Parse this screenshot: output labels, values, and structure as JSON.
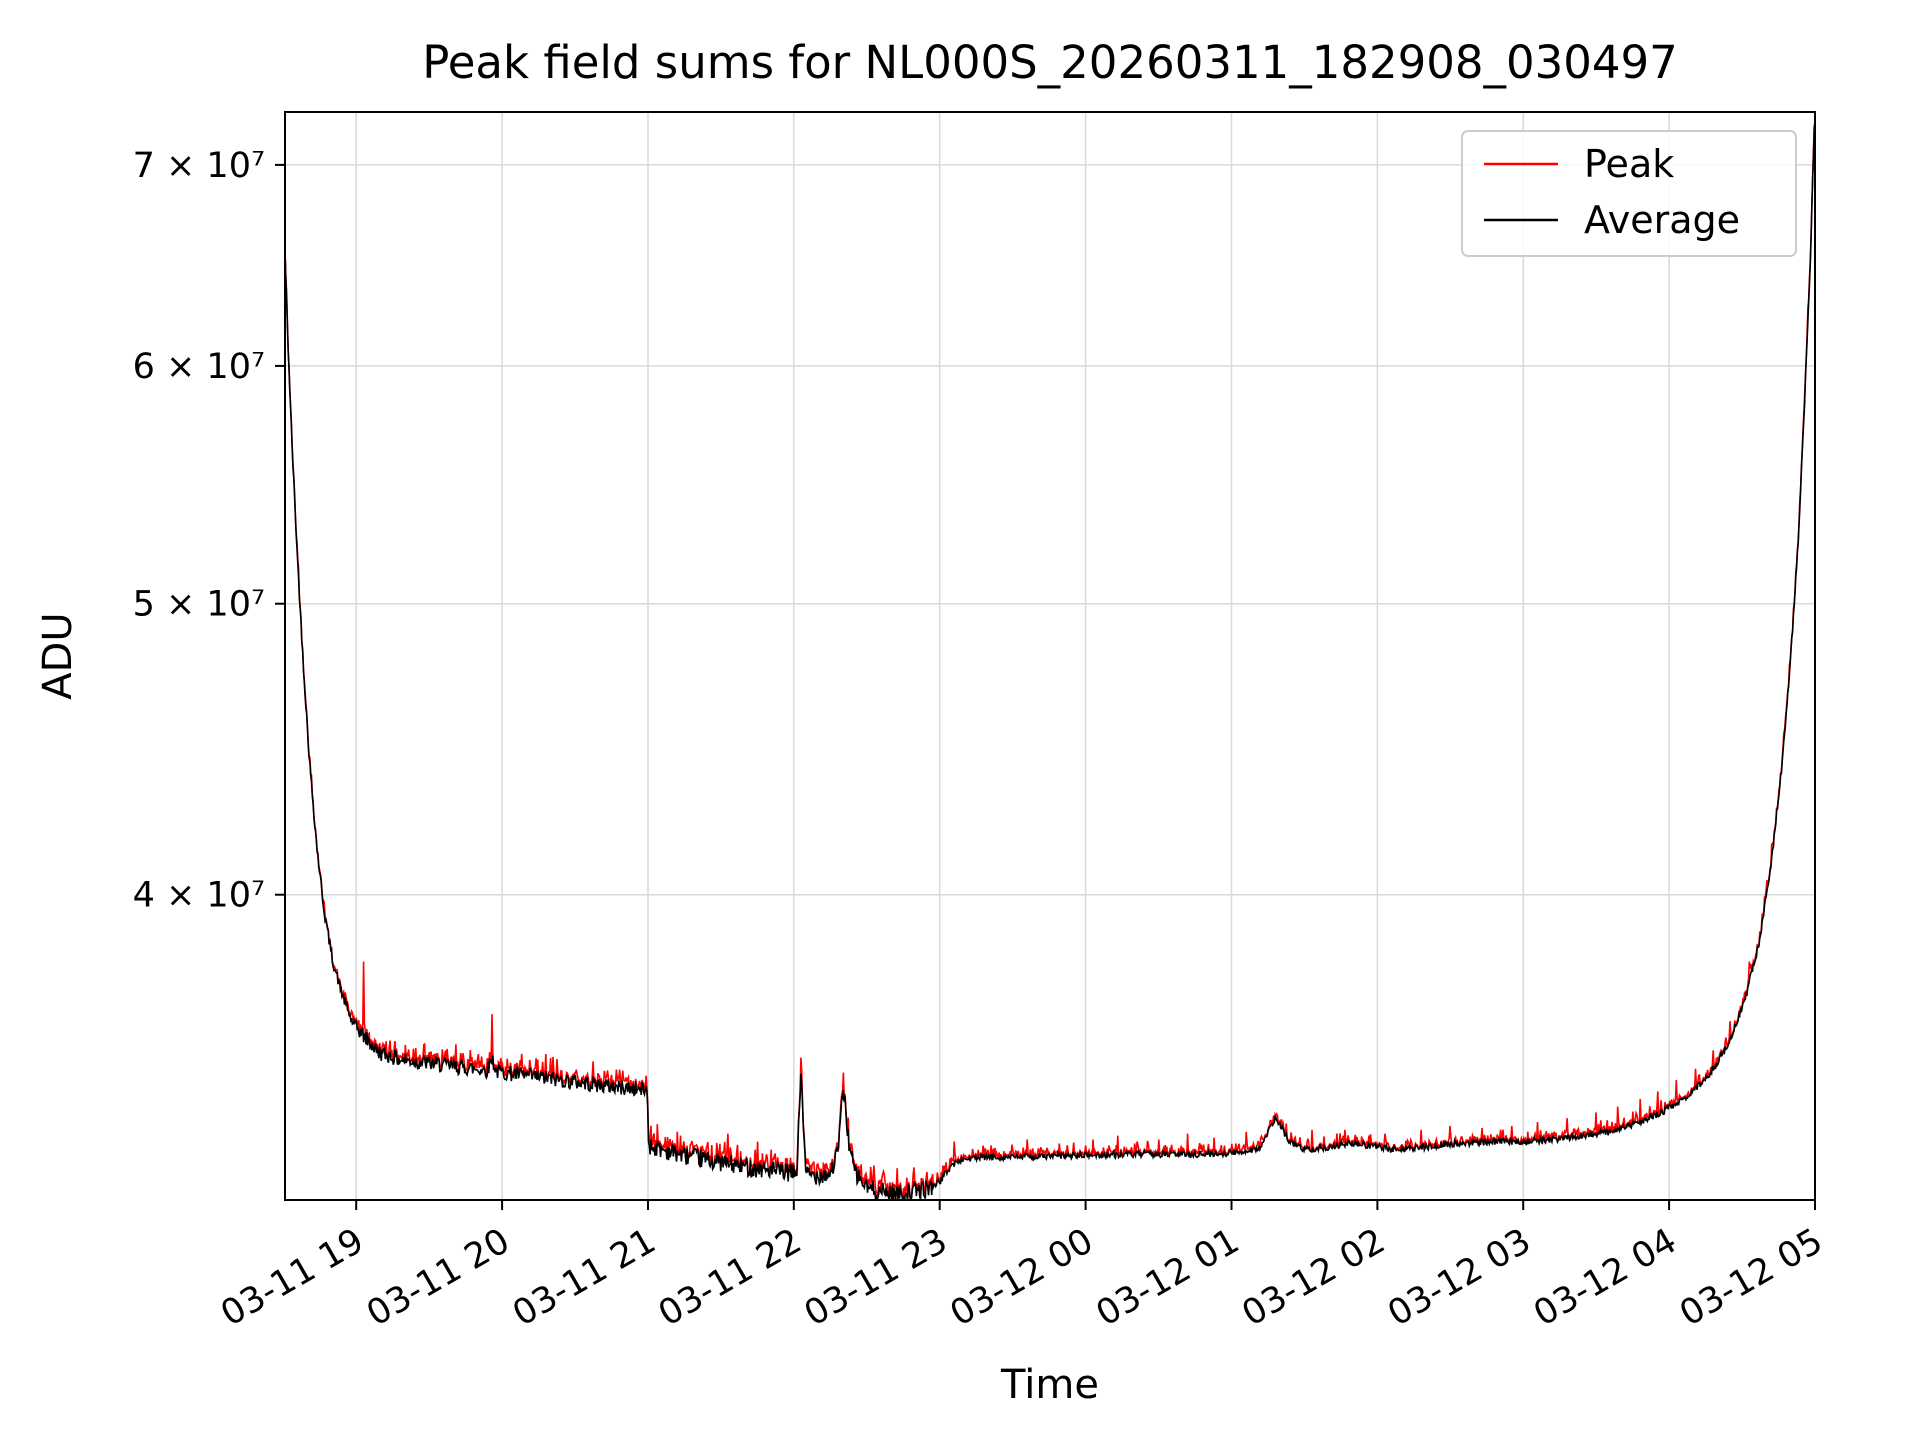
{
  "chart_data": {
    "type": "line",
    "title": "Peak field sums for NL000S_20260311_182908_030497",
    "xlabel": "Time",
    "ylabel": "ADU",
    "yscale": "log",
    "grid": true,
    "legend_position": "upper right",
    "xlim_hours": [
      18.512,
      29.0
    ],
    "ylim": [
      31650000,
      72900000
    ],
    "x_ticks": [
      {
        "hour": 19,
        "label": "03-11 19"
      },
      {
        "hour": 20,
        "label": "03-11 20"
      },
      {
        "hour": 21,
        "label": "03-11 21"
      },
      {
        "hour": 22,
        "label": "03-11 22"
      },
      {
        "hour": 23,
        "label": "03-11 23"
      },
      {
        "hour": 24,
        "label": "03-12 00"
      },
      {
        "hour": 25,
        "label": "03-12 01"
      },
      {
        "hour": 26,
        "label": "03-12 02"
      },
      {
        "hour": 27,
        "label": "03-12 03"
      },
      {
        "hour": 28,
        "label": "03-12 04"
      },
      {
        "hour": 29,
        "label": "03-12 05"
      }
    ],
    "y_ticks": [
      {
        "value": 40000000,
        "label": "4 × 10⁷"
      },
      {
        "value": 50000000,
        "label": "5 × 10⁷"
      },
      {
        "value": 60000000,
        "label": "6 × 10⁷"
      },
      {
        "value": 70000000,
        "label": "7 × 10⁷"
      }
    ],
    "series": [
      {
        "name": "Peak",
        "color": "#ff0000",
        "render_hint": "follows Average with an upward noise fringe plus discrete spikes",
        "spikes_x_hours_adu": [
          [
            19.05,
            38000000
          ],
          [
            19.93,
            36500000
          ],
          [
            20.3,
            35400000
          ],
          [
            21.2,
            33350000
          ],
          [
            21.55,
            33300000
          ],
          [
            21.75,
            33100000
          ],
          [
            22.05,
            35300000
          ],
          [
            22.34,
            34900000
          ],
          [
            22.55,
            32500000
          ],
          [
            23.1,
            33100000
          ],
          [
            23.35,
            33000000
          ],
          [
            23.6,
            33150000
          ],
          [
            23.82,
            33050000
          ],
          [
            24.05,
            33150000
          ],
          [
            24.22,
            33250000
          ],
          [
            24.5,
            33150000
          ],
          [
            24.7,
            33300000
          ],
          [
            24.88,
            33200000
          ],
          [
            25.1,
            33350000
          ],
          [
            25.55,
            33400000
          ],
          [
            25.78,
            33400000
          ],
          [
            26.05,
            33300000
          ],
          [
            26.3,
            33400000
          ],
          [
            26.5,
            33500000
          ],
          [
            26.72,
            33450000
          ],
          [
            26.92,
            33500000
          ],
          [
            27.1,
            33600000
          ],
          [
            27.3,
            33700000
          ],
          [
            27.5,
            33850000
          ],
          [
            27.65,
            34000000
          ],
          [
            27.8,
            34200000
          ],
          [
            27.92,
            34400000
          ],
          [
            28.05,
            34700000
          ],
          [
            28.18,
            35000000
          ],
          [
            28.3,
            35500000
          ],
          [
            28.42,
            36300000
          ],
          [
            28.55,
            38000000
          ],
          [
            28.65,
            39300000
          ]
        ]
      },
      {
        "name": "Average",
        "color": "#000000",
        "keypoints_x_hours_adu": [
          [
            18.512,
            65500000
          ],
          [
            18.53,
            61500000
          ],
          [
            18.56,
            56500000
          ],
          [
            18.6,
            51500000
          ],
          [
            18.64,
            47500000
          ],
          [
            18.68,
            44300000
          ],
          [
            18.73,
            41500000
          ],
          [
            18.78,
            39500000
          ],
          [
            18.84,
            38000000
          ],
          [
            18.9,
            37100000
          ],
          [
            18.97,
            36300000
          ],
          [
            19.05,
            35900000
          ],
          [
            19.15,
            35450000
          ],
          [
            19.3,
            35250000
          ],
          [
            19.5,
            35150000
          ],
          [
            19.7,
            35050000
          ],
          [
            19.9,
            34960000
          ],
          [
            19.93,
            35300000
          ],
          [
            19.96,
            34930000
          ],
          [
            20.1,
            34850000
          ],
          [
            20.3,
            34750000
          ],
          [
            20.5,
            34650000
          ],
          [
            20.7,
            34550000
          ],
          [
            20.9,
            34470000
          ],
          [
            20.995,
            34430000
          ],
          [
            21.005,
            33000000
          ],
          [
            21.1,
            32900000
          ],
          [
            21.25,
            32750000
          ],
          [
            21.4,
            32650000
          ],
          [
            21.6,
            32500000
          ],
          [
            21.8,
            32400000
          ],
          [
            21.95,
            32320000
          ],
          [
            22.02,
            32300000
          ],
          [
            22.05,
            35000000
          ],
          [
            22.08,
            32300000
          ],
          [
            22.15,
            32250000
          ],
          [
            22.25,
            32300000
          ],
          [
            22.3,
            32800000
          ],
          [
            22.34,
            34500000
          ],
          [
            22.38,
            33000000
          ],
          [
            22.42,
            32300000
          ],
          [
            22.5,
            31950000
          ],
          [
            22.6,
            31850000
          ],
          [
            22.75,
            31800000
          ],
          [
            22.9,
            31900000
          ],
          [
            23.0,
            32100000
          ],
          [
            23.08,
            32500000
          ],
          [
            23.15,
            32650000
          ],
          [
            23.3,
            32700000
          ],
          [
            23.6,
            32720000
          ],
          [
            24.0,
            32750000
          ],
          [
            24.4,
            32780000
          ],
          [
            24.8,
            32780000
          ],
          [
            25.05,
            32820000
          ],
          [
            25.2,
            32950000
          ],
          [
            25.3,
            33700000
          ],
          [
            25.4,
            33100000
          ],
          [
            25.5,
            32900000
          ],
          [
            25.65,
            32950000
          ],
          [
            25.8,
            33050000
          ],
          [
            25.95,
            33000000
          ],
          [
            26.1,
            32900000
          ],
          [
            26.3,
            32950000
          ],
          [
            26.55,
            33050000
          ],
          [
            26.8,
            33100000
          ],
          [
            27.0,
            33100000
          ],
          [
            27.2,
            33150000
          ],
          [
            27.4,
            33250000
          ],
          [
            27.6,
            33350000
          ],
          [
            27.8,
            33600000
          ],
          [
            27.95,
            33850000
          ],
          [
            28.1,
            34200000
          ],
          [
            28.22,
            34600000
          ],
          [
            28.32,
            35100000
          ],
          [
            28.42,
            35800000
          ],
          [
            28.52,
            36900000
          ],
          [
            28.62,
            38600000
          ],
          [
            28.7,
            41000000
          ],
          [
            28.78,
            44500000
          ],
          [
            28.84,
            48500000
          ],
          [
            28.89,
            53000000
          ],
          [
            28.93,
            58500000
          ],
          [
            28.97,
            65500000
          ],
          [
            29.0,
            73500000
          ]
        ]
      }
    ],
    "noise_segments": [
      {
        "from": 18.5,
        "to": 19.0,
        "avg": 0.004,
        "peak": 0.005
      },
      {
        "from": 19.0,
        "to": 21.0,
        "avg": 0.006,
        "peak": 0.007
      },
      {
        "from": 21.0,
        "to": 22.95,
        "avg": 0.007,
        "peak": 0.007
      },
      {
        "from": 22.95,
        "to": 28.2,
        "avg": 0.0025,
        "peak": 0.004
      },
      {
        "from": 28.2,
        "to": 29.01,
        "avg": 0.003,
        "peak": 0.005
      }
    ],
    "colors": {
      "grid": "#d9d9d9",
      "spine": "#000000",
      "legend_border": "#cccccc",
      "background": "#ffffff"
    }
  }
}
